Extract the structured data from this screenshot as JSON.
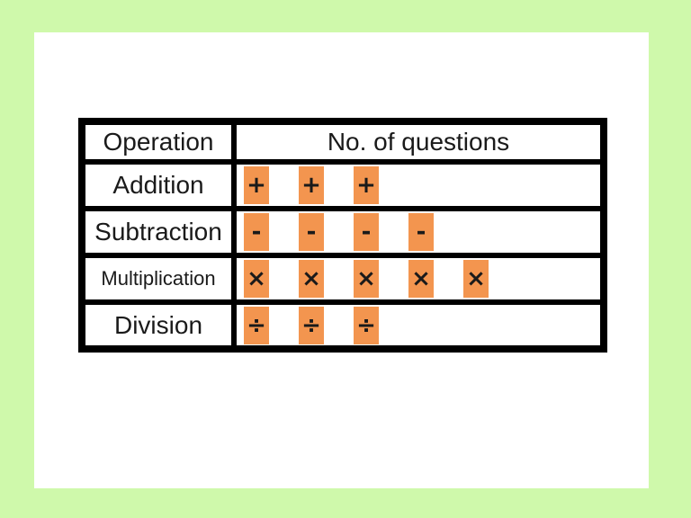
{
  "colors": {
    "background_green": "#cff9ab",
    "card_white": "#ffffff",
    "border_black": "#000000",
    "text_ink": "#1a1a1a",
    "tile_orange": "#f3954f"
  },
  "table": {
    "header": {
      "operation": "Operation",
      "questions": "No. of questions"
    },
    "rows": [
      {
        "label": "Addition",
        "symbol": "+",
        "count": 3,
        "icon_name": "plus-icon"
      },
      {
        "label": "Subtraction",
        "symbol": "-",
        "count": 4,
        "icon_name": "minus-icon"
      },
      {
        "label": "Multiplication",
        "symbol": "×",
        "count": 5,
        "icon_name": "multiply-icon"
      },
      {
        "label": "Division",
        "symbol": "÷",
        "count": 3,
        "icon_name": "divide-icon"
      }
    ]
  },
  "chart_data": {
    "type": "table",
    "title": "",
    "columns": [
      "Operation",
      "No. of questions"
    ],
    "categories": [
      "Addition",
      "Subtraction",
      "Multiplication",
      "Division"
    ],
    "values": [
      3,
      4,
      5,
      3
    ],
    "symbols": [
      "+",
      "-",
      "×",
      "÷"
    ],
    "legend_position": "none",
    "notes": "pictograph tally: one orange tile per question"
  }
}
